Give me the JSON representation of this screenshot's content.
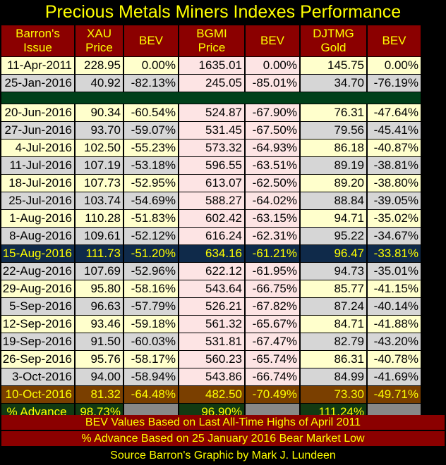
{
  "title": "Precious Metals Miners Indexes Performance",
  "columns": [
    [
      "Barron's",
      "Issue"
    ],
    [
      "XAU",
      "Price"
    ],
    [
      "BEV"
    ],
    [
      "BGMI",
      "Price"
    ],
    [
      "BEV"
    ],
    [
      "DJTMG",
      "Gold"
    ],
    [
      "BEV"
    ]
  ],
  "rows_top": [
    [
      "11-Apr-2011",
      "228.95",
      "0.00%",
      "1635.01",
      "0.00%",
      "145.75",
      "0.00%"
    ],
    [
      "25-Jan-2016",
      "40.92",
      "-82.13%",
      "245.05",
      "-85.01%",
      "34.70",
      "-76.19%"
    ]
  ],
  "rows_main": [
    [
      "20-Jun-2016",
      "90.34",
      "-60.54%",
      "524.87",
      "-67.90%",
      "76.31",
      "-47.64%"
    ],
    [
      "27-Jun-2016",
      "93.70",
      "-59.07%",
      "531.45",
      "-67.50%",
      "79.56",
      "-45.41%"
    ],
    [
      "4-Jul-2016",
      "102.50",
      "-55.23%",
      "573.32",
      "-64.93%",
      "86.18",
      "-40.87%"
    ],
    [
      "11-Jul-2016",
      "107.19",
      "-53.18%",
      "596.55",
      "-63.51%",
      "89.19",
      "-38.81%"
    ],
    [
      "18-Jul-2016",
      "107.73",
      "-52.95%",
      "613.07",
      "-62.50%",
      "89.20",
      "-38.80%"
    ],
    [
      "25-Jul-2016",
      "103.74",
      "-54.69%",
      "588.27",
      "-64.02%",
      "88.84",
      "-39.05%"
    ],
    [
      "1-Aug-2016",
      "110.28",
      "-51.83%",
      "602.42",
      "-63.15%",
      "94.71",
      "-35.02%"
    ],
    [
      "8-Aug-2016",
      "109.61",
      "-52.12%",
      "616.24",
      "-62.31%",
      "95.22",
      "-34.67%"
    ],
    [
      "15-Aug-2016",
      "111.73",
      "-51.20%",
      "634.16",
      "-61.21%",
      "96.47",
      "-33.81%"
    ],
    [
      "22-Aug-2016",
      "107.69",
      "-52.96%",
      "622.12",
      "-61.95%",
      "94.73",
      "-35.01%"
    ],
    [
      "29-Aug-2016",
      "95.80",
      "-58.16%",
      "543.64",
      "-66.75%",
      "85.77",
      "-41.15%"
    ],
    [
      "5-Sep-2016",
      "96.63",
      "-57.79%",
      "526.21",
      "-67.82%",
      "87.24",
      "-40.14%"
    ],
    [
      "12-Sep-2016",
      "93.46",
      "-59.18%",
      "561.32",
      "-65.67%",
      "84.71",
      "-41.88%"
    ],
    [
      "19-Sep-2016",
      "91.50",
      "-60.03%",
      "531.81",
      "-67.47%",
      "82.79",
      "-43.20%"
    ],
    [
      "26-Sep-2016",
      "95.76",
      "-58.17%",
      "560.23",
      "-65.74%",
      "86.31",
      "-40.78%"
    ],
    [
      "3-Oct-2016",
      "94.00",
      "-58.94%",
      "543.86",
      "-66.74%",
      "84.99",
      "-41.69%"
    ],
    [
      "10-Oct-2016",
      "81.32",
      "-64.48%",
      "482.50",
      "-70.49%",
      "73.30",
      "-49.71%"
    ]
  ],
  "advance_row": [
    "% Advance",
    "98.73%",
    "",
    "96.90%",
    "",
    "111.24%",
    ""
  ],
  "footer": [
    "BEV Values Based on Last All-Time Highs of April 2011",
    "% Advance Based on 25 January 2016 Bear Market Low",
    "Source Barron's   Graphic by Mark J. Lundeen"
  ],
  "colors": {
    "header_bg": "#8b0000",
    "title_text": "#ffff00",
    "highlight_row": "#0f2a4a",
    "final_row": "#7a3f00",
    "advance_row": "#123a12"
  },
  "chart_data": {
    "type": "table",
    "title": "Precious Metals Miners Indexes Performance",
    "series": [
      {
        "name": "XAU Price",
        "values": [
          228.95,
          40.92,
          90.34,
          93.7,
          102.5,
          107.19,
          107.73,
          103.74,
          110.28,
          109.61,
          111.73,
          107.69,
          95.8,
          96.63,
          93.46,
          91.5,
          95.76,
          94.0,
          81.32
        ]
      },
      {
        "name": "BGMI Price",
        "values": [
          1635.01,
          245.05,
          524.87,
          531.45,
          573.32,
          596.55,
          613.07,
          588.27,
          602.42,
          616.24,
          634.16,
          622.12,
          543.64,
          526.21,
          561.32,
          531.81,
          560.23,
          543.86,
          482.5
        ]
      },
      {
        "name": "DJTMG Gold",
        "values": [
          145.75,
          34.7,
          76.31,
          79.56,
          86.18,
          89.19,
          89.2,
          88.84,
          94.71,
          95.22,
          96.47,
          94.73,
          85.77,
          87.24,
          84.71,
          82.79,
          86.31,
          84.99,
          73.3
        ]
      }
    ]
  }
}
